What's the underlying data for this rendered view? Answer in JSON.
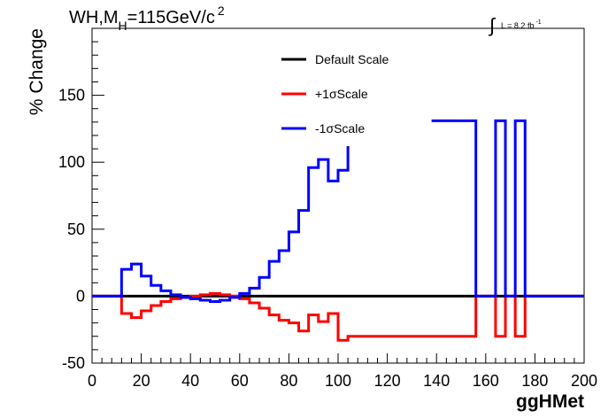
{
  "chart_data": {
    "type": "line",
    "title": "WH,M",
    "title_subscript": "H",
    "title_rest": "=115GeV/c",
    "title_superscript": "2",
    "lumi": {
      "integral_symbol": "∫",
      "text": "L = 8.2 fb",
      "superscript": "-1"
    },
    "xlabel": "ggHMet",
    "ylabel": "% Change",
    "xlim": [
      0,
      200
    ],
    "ylim": [
      -50,
      200
    ],
    "x_ticks": [
      0,
      20,
      40,
      60,
      80,
      100,
      120,
      140,
      160,
      180,
      200
    ],
    "y_ticks": [
      -50,
      0,
      50,
      100,
      150
    ],
    "grid": false,
    "legend_position": "top-center",
    "series": [
      {
        "name": "Default Scale",
        "color": "#000000",
        "points": [
          [
            0,
            0
          ],
          [
            200,
            0
          ]
        ]
      },
      {
        "name": "+1σScale",
        "color": "#ff0000",
        "points": [
          [
            0,
            0
          ],
          [
            12,
            0
          ],
          [
            12,
            -13
          ],
          [
            16,
            -13
          ],
          [
            16,
            -16
          ],
          [
            20,
            -16
          ],
          [
            20,
            -11
          ],
          [
            24,
            -11
          ],
          [
            24,
            -7
          ],
          [
            28,
            -7
          ],
          [
            28,
            -4
          ],
          [
            32,
            -4
          ],
          [
            32,
            -2
          ],
          [
            36,
            -2
          ],
          [
            36,
            -1
          ],
          [
            40,
            -1
          ],
          [
            40,
            0
          ],
          [
            44,
            0
          ],
          [
            44,
            1
          ],
          [
            48,
            1
          ],
          [
            48,
            2
          ],
          [
            52,
            2
          ],
          [
            52,
            1
          ],
          [
            56,
            1
          ],
          [
            56,
            0
          ],
          [
            60,
            0
          ],
          [
            60,
            -2
          ],
          [
            64,
            -2
          ],
          [
            64,
            -5
          ],
          [
            68,
            -5
          ],
          [
            68,
            -9
          ],
          [
            72,
            -9
          ],
          [
            72,
            -14
          ],
          [
            76,
            -14
          ],
          [
            76,
            -18
          ],
          [
            80,
            -18
          ],
          [
            80,
            -20
          ],
          [
            84,
            -20
          ],
          [
            84,
            -26
          ],
          [
            88,
            -26
          ],
          [
            88,
            -14
          ],
          [
            92,
            -14
          ],
          [
            92,
            -19
          ],
          [
            96,
            -19
          ],
          [
            96,
            -13
          ],
          [
            100,
            -13
          ],
          [
            100,
            -33
          ],
          [
            104,
            -33
          ],
          [
            104,
            -30
          ],
          [
            156,
            -30
          ],
          [
            156,
            0
          ],
          [
            164,
            0
          ],
          [
            164,
            -30
          ],
          [
            168,
            -30
          ],
          [
            168,
            0
          ],
          [
            172,
            0
          ],
          [
            172,
            -30
          ],
          [
            176,
            -30
          ],
          [
            176,
            0
          ],
          [
            200,
            0
          ]
        ]
      },
      {
        "name": "-1σScale",
        "color": "#0000ff",
        "points": [
          [
            0,
            0
          ],
          [
            12,
            0
          ],
          [
            12,
            20
          ],
          [
            16,
            20
          ],
          [
            16,
            24
          ],
          [
            20,
            24
          ],
          [
            20,
            15
          ],
          [
            24,
            15
          ],
          [
            24,
            8
          ],
          [
            28,
            8
          ],
          [
            28,
            4
          ],
          [
            32,
            4
          ],
          [
            32,
            1
          ],
          [
            36,
            1
          ],
          [
            36,
            -1
          ],
          [
            40,
            -1
          ],
          [
            40,
            -2
          ],
          [
            44,
            -2
          ],
          [
            44,
            -3
          ],
          [
            48,
            -3
          ],
          [
            48,
            -4
          ],
          [
            52,
            -4
          ],
          [
            52,
            -3
          ],
          [
            56,
            -3
          ],
          [
            56,
            -1
          ],
          [
            60,
            -1
          ],
          [
            60,
            2
          ],
          [
            64,
            2
          ],
          [
            64,
            6
          ],
          [
            68,
            6
          ],
          [
            68,
            14
          ],
          [
            72,
            14
          ],
          [
            72,
            26
          ],
          [
            76,
            26
          ],
          [
            76,
            34
          ],
          [
            80,
            34
          ],
          [
            80,
            48
          ],
          [
            84,
            48
          ],
          [
            84,
            64
          ],
          [
            88,
            64
          ],
          [
            88,
            96
          ],
          [
            92,
            96
          ],
          [
            92,
            102
          ],
          [
            96,
            102
          ],
          [
            96,
            86
          ],
          [
            100,
            86
          ],
          [
            100,
            94
          ],
          [
            104,
            94
          ],
          [
            104,
            112
          ]
        ],
        "segments": [
          [
            [
              138,
              131
            ],
            [
              156,
              131
            ],
            [
              156,
              0
            ],
            [
              164,
              0
            ],
            [
              164,
              131
            ],
            [
              168,
              131
            ],
            [
              168,
              0
            ],
            [
              172,
              0
            ],
            [
              172,
              131
            ],
            [
              176,
              131
            ],
            [
              176,
              0
            ],
            [
              200,
              0
            ]
          ]
        ]
      }
    ]
  }
}
